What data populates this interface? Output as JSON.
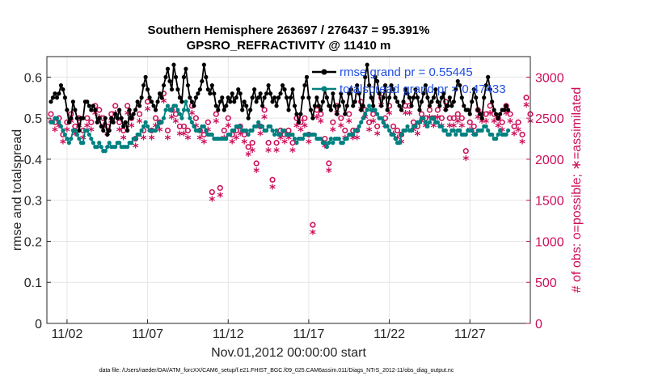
{
  "chart_data": {
    "type": "line",
    "title_line1": "Southern Hemisphere 263697 / 276437 = 95.391%",
    "title_line2": "GPSRO_REFRACTIVITY @ 11410 m",
    "xlabel": "Nov.01,2012 00:00:00 start",
    "ylabel_left": "rmse and totalspread",
    "ylabel_right": "# of obs: o=possible; ∗=assimilated",
    "x_ticks": [
      {
        "day": 2,
        "label": "11/02"
      },
      {
        "day": 7,
        "label": "11/07"
      },
      {
        "day": 12,
        "label": "11/12"
      },
      {
        "day": 17,
        "label": "11/17"
      },
      {
        "day": 22,
        "label": "11/22"
      },
      {
        "day": 27,
        "label": "11/27"
      }
    ],
    "xlim_days": [
      0.75,
      30.75
    ],
    "ylim_left": [
      0,
      0.65
    ],
    "yticks_left": [
      "0",
      "0.1",
      "0.2",
      "0.3",
      "0.4",
      "0.5",
      "0.6"
    ],
    "ylim_right": [
      0,
      3250
    ],
    "yticks_right": [
      "0",
      "500",
      "1000",
      "1500",
      "2000",
      "2500",
      "3000"
    ],
    "grid": true,
    "legend_position": "top-right",
    "footnote": "data file: /Users/raeder/DAI/ATM_forcXX/CAM6_setup/f.e21.FHIST_BGC.f09_025.CAM6assim.011/Diags_NTrS_2012-11/obs_diag_output.nc",
    "colors": {
      "rmse": "#000000",
      "spread": "#008080",
      "obs": "#cc0f5a",
      "legend_text": "#1f4fe0"
    },
    "series": [
      {
        "name": "rmse grand pr = 0.55445",
        "color": "#000000",
        "x_start_day": 1.0,
        "x_step_days": 0.125,
        "values": [
          0.54,
          0.55,
          0.56,
          0.55,
          0.56,
          0.58,
          0.57,
          0.55,
          0.52,
          0.49,
          0.5,
          0.54,
          0.52,
          0.5,
          0.47,
          0.5,
          0.5,
          0.54,
          0.54,
          0.53,
          0.52,
          0.53,
          0.52,
          0.49,
          0.5,
          0.48,
          0.47,
          0.5,
          0.46,
          0.47,
          0.5,
          0.49,
          0.51,
          0.5,
          0.52,
          0.5,
          0.48,
          0.49,
          0.47,
          0.52,
          0.5,
          0.51,
          0.52,
          0.54,
          0.53,
          0.55,
          0.58,
          0.6,
          0.57,
          0.55,
          0.54,
          0.53,
          0.52,
          0.54,
          0.56,
          0.55,
          0.58,
          0.6,
          0.62,
          0.59,
          0.57,
          0.63,
          0.6,
          0.57,
          0.55,
          0.54,
          0.6,
          0.62,
          0.58,
          0.55,
          0.54,
          0.53,
          0.55,
          0.56,
          0.57,
          0.59,
          0.63,
          0.6,
          0.57,
          0.56,
          0.58,
          0.56,
          0.53,
          0.52,
          0.54,
          0.55,
          0.52,
          0.53,
          0.55,
          0.54,
          0.56,
          0.54,
          0.55,
          0.57,
          0.56,
          0.52,
          0.54,
          0.53,
          0.5,
          0.52,
          0.55,
          0.57,
          0.54,
          0.55,
          0.56,
          0.53,
          0.55,
          0.56,
          0.58,
          0.56,
          0.54,
          0.55,
          0.53,
          0.55,
          0.56,
          0.58,
          0.57,
          0.55,
          0.52,
          0.55,
          0.57,
          0.53,
          0.51,
          0.49,
          0.51,
          0.55,
          0.58,
          0.6,
          0.55,
          0.52,
          0.5,
          0.53,
          0.55,
          0.53,
          0.52,
          0.54,
          0.57,
          0.55,
          0.53,
          0.52,
          0.56,
          0.53,
          0.51,
          0.53,
          0.56,
          0.54,
          0.51,
          0.53,
          0.56,
          0.57,
          0.53,
          0.54,
          0.58,
          0.56,
          0.52,
          0.53,
          0.6,
          0.63,
          0.58,
          0.55,
          0.53,
          0.6,
          0.59,
          0.56,
          0.53,
          0.55,
          0.58,
          0.52,
          0.55,
          0.58,
          0.57,
          0.55,
          0.54,
          0.53,
          0.52,
          0.54,
          0.57,
          0.56,
          0.55,
          0.53,
          0.55,
          0.57,
          0.55,
          0.52,
          0.54,
          0.56,
          0.58,
          0.55,
          0.53,
          0.54,
          0.55,
          0.57,
          0.54,
          0.53,
          0.55,
          0.56,
          0.52,
          0.53,
          0.55,
          0.53,
          0.54,
          0.57,
          0.59,
          0.58,
          0.55,
          0.53,
          0.52,
          0.52,
          0.51,
          0.54,
          0.57,
          0.55,
          0.52,
          0.51,
          0.5,
          0.55,
          0.58,
          0.6,
          0.57,
          0.54,
          0.52,
          0.51,
          0.5,
          0.51,
          0.52,
          0.52,
          0.53,
          0.52
        ]
      },
      {
        "name": "totalspread grand pr = 0.47433",
        "color": "#008080",
        "x_start_day": 1.0,
        "x_step_days": 0.125,
        "values": [
          0.49,
          0.49,
          0.5,
          0.5,
          0.49,
          0.48,
          0.47,
          0.46,
          0.45,
          0.44,
          0.45,
          0.47,
          0.47,
          0.46,
          0.45,
          0.44,
          0.44,
          0.47,
          0.47,
          0.46,
          0.45,
          0.44,
          0.43,
          0.43,
          0.44,
          0.43,
          0.42,
          0.42,
          0.43,
          0.44,
          0.43,
          0.43,
          0.43,
          0.44,
          0.44,
          0.43,
          0.43,
          0.43,
          0.43,
          0.44,
          0.44,
          0.45,
          0.45,
          0.46,
          0.46,
          0.47,
          0.48,
          0.49,
          0.48,
          0.47,
          0.47,
          0.47,
          0.47,
          0.48,
          0.49,
          0.49,
          0.5,
          0.52,
          0.53,
          0.52,
          0.52,
          0.53,
          0.53,
          0.52,
          0.51,
          0.5,
          0.52,
          0.54,
          0.52,
          0.5,
          0.49,
          0.48,
          0.47,
          0.47,
          0.47,
          0.48,
          0.48,
          0.47,
          0.46,
          0.46,
          0.46,
          0.45,
          0.45,
          0.45,
          0.45,
          0.45,
          0.45,
          0.45,
          0.46,
          0.46,
          0.47,
          0.47,
          0.48,
          0.48,
          0.48,
          0.47,
          0.47,
          0.47,
          0.46,
          0.47,
          0.47,
          0.48,
          0.48,
          0.49,
          0.48,
          0.48,
          0.47,
          0.47,
          0.48,
          0.48,
          0.47,
          0.46,
          0.47,
          0.46,
          0.46,
          0.47,
          0.47,
          0.46,
          0.46,
          0.46,
          0.46,
          0.45,
          0.44,
          0.45,
          0.45,
          0.45,
          0.46,
          0.46,
          0.46,
          0.46,
          0.46,
          0.46,
          0.45,
          0.45,
          0.45,
          0.44,
          0.44,
          0.43,
          0.44,
          0.45,
          0.44,
          0.45,
          0.45,
          0.45,
          0.44,
          0.44,
          0.45,
          0.45,
          0.46,
          0.46,
          0.46,
          0.47,
          0.47,
          0.48,
          0.49,
          0.5,
          0.51,
          0.52,
          0.53,
          0.52,
          0.52,
          0.52,
          0.51,
          0.5,
          0.5,
          0.49,
          0.48,
          0.48,
          0.47,
          0.46,
          0.46,
          0.45,
          0.44,
          0.44,
          0.46,
          0.47,
          0.47,
          0.48,
          0.47,
          0.47,
          0.48,
          0.48,
          0.49,
          0.49,
          0.5,
          0.5,
          0.49,
          0.48,
          0.49,
          0.5,
          0.5,
          0.49,
          0.49,
          0.48,
          0.48,
          0.47,
          0.47,
          0.46,
          0.46,
          0.47,
          0.47,
          0.46,
          0.47,
          0.47,
          0.46,
          0.46,
          0.46,
          0.47,
          0.47,
          0.47,
          0.46,
          0.46,
          0.47,
          0.47,
          0.47,
          0.48,
          0.48,
          0.47,
          0.46,
          0.46,
          0.45,
          0.45,
          0.46,
          0.47,
          0.46,
          0.46,
          0.46,
          0.47
        ]
      },
      {
        "name": "possible",
        "marker": "o",
        "color": "#cc0f5a",
        "x_start_day": 1.0,
        "x_step_days": 0.25,
        "values": [
          2550,
          2450,
          2500,
          2300,
          2450,
          2550,
          2400,
          2500,
          2350,
          2500,
          2450,
          2650,
          2600,
          2500,
          2400,
          2550,
          2650,
          2450,
          2350,
          2650,
          2500,
          2250,
          2550,
          2350,
          2700,
          2350,
          2500,
          2450,
          2800,
          2350,
          2600,
          2550,
          2400,
          2400,
          2350,
          2650,
          2500,
          2350,
          2300,
          2450,
          1600,
          2550,
          1650,
          2350,
          2500,
          2300,
          2350,
          2400,
          2300,
          2150,
          2200,
          1950,
          2400,
          2600,
          2200,
          1750,
          2200,
          2350,
          2300,
          2350,
          2200,
          2500,
          2450,
          2500,
          2300,
          1200,
          2600,
          2550,
          2250,
          1950,
          2450,
          2650,
          2500,
          2350,
          2550,
          2350,
          2350,
          2700,
          2600,
          2450,
          2550,
          2400,
          2750,
          2500,
          2650,
          2400,
          2350,
          2300,
          2650,
          2650,
          2450,
          2400,
          2550,
          2500,
          2600,
          2500,
          2600,
          2500,
          2700,
          2500,
          2500,
          2550,
          2500,
          2100,
          2450,
          2400,
          2600,
          2550,
          2550,
          2650,
          2550,
          2500,
          2450,
          2650,
          2550,
          2400,
          2450,
          2300,
          2750,
          2550
        ]
      },
      {
        "name": "assimilated",
        "marker": "*",
        "color": "#cc0f5a",
        "x_start_day": 1.0,
        "x_step_days": 0.25,
        "values": [
          2450,
          2350,
          2400,
          2200,
          2350,
          2450,
          2300,
          2400,
          2250,
          2400,
          2350,
          2550,
          2500,
          2400,
          2300,
          2450,
          2550,
          2350,
          2250,
          2550,
          2400,
          2150,
          2450,
          2250,
          2600,
          2250,
          2400,
          2350,
          2700,
          2250,
          2500,
          2450,
          2300,
          2300,
          2250,
          2550,
          2400,
          2250,
          2200,
          2350,
          1500,
          2450,
          1550,
          2250,
          2400,
          2200,
          2250,
          2300,
          2200,
          2050,
          2100,
          1850,
          2300,
          2500,
          2100,
          1650,
          2100,
          2250,
          2200,
          2250,
          2100,
          2400,
          2350,
          2400,
          2200,
          1100,
          2500,
          2450,
          2150,
          1850,
          2350,
          2550,
          2400,
          2250,
          2450,
          2250,
          2250,
          2600,
          2500,
          2350,
          2450,
          2300,
          2650,
          2400,
          2550,
          2300,
          2250,
          2200,
          2550,
          2550,
          2350,
          2300,
          2450,
          2400,
          2500,
          2400,
          2500,
          2400,
          2600,
          2400,
          2400,
          2450,
          2400,
          2000,
          2350,
          2300,
          2500,
          2450,
          2450,
          2550,
          2450,
          2400,
          2350,
          2550,
          2450,
          2300,
          2350,
          2200,
          2650,
          2450
        ]
      }
    ]
  }
}
